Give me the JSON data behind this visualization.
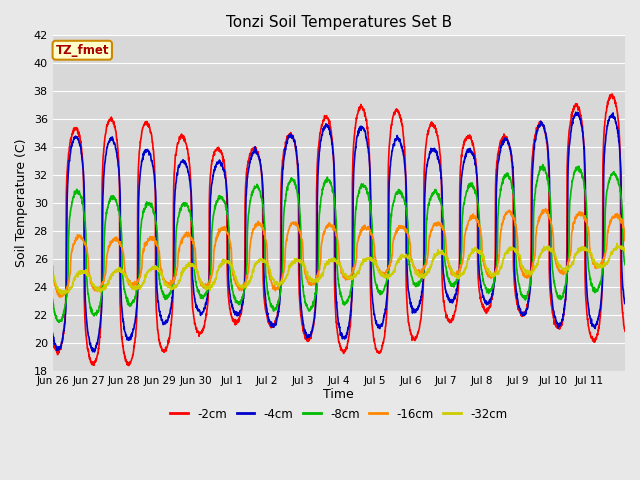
{
  "title": "Tonzi Soil Temperatures Set B",
  "xlabel": "Time",
  "ylabel": "Soil Temperature (C)",
  "ylim": [
    18,
    42
  ],
  "annotation_text": "TZ_fmet",
  "series_labels": [
    "-2cm",
    "-4cm",
    "-8cm",
    "-16cm",
    "-32cm"
  ],
  "series_colors": [
    "#ff0000",
    "#0000cc",
    "#00bb00",
    "#ff8800",
    "#cccc00"
  ],
  "series_linewidths": [
    1.2,
    1.2,
    1.2,
    1.2,
    1.2
  ],
  "bg_color": "#e8e8e8",
  "plot_bg_color": "#d8d8d8",
  "grid_color": "#ffffff",
  "num_days": 16,
  "tick_labels": [
    "Jun 26",
    "Jun 27",
    "Jun 28",
    "Jun 29",
    "Jun 30",
    "Jul 1",
    "Jul 2",
    "Jul 3",
    "Jul 4",
    "Jul 5",
    "Jul 6",
    "Jul 7",
    "Jul 8",
    "Jul 9",
    "Jul 10",
    "Jul 11"
  ],
  "samples_per_day": 144,
  "depth_amplitudes": [
    7.5,
    6.5,
    4.0,
    2.0,
    0.8
  ],
  "depth_means": [
    27.0,
    27.0,
    26.2,
    25.5,
    24.3
  ],
  "depth_lags": [
    0.0,
    0.5,
    1.5,
    3.0,
    5.0
  ],
  "sharpness": [
    4.0,
    3.5,
    2.5,
    2.0,
    1.5
  ],
  "trend_scale": 0.12
}
